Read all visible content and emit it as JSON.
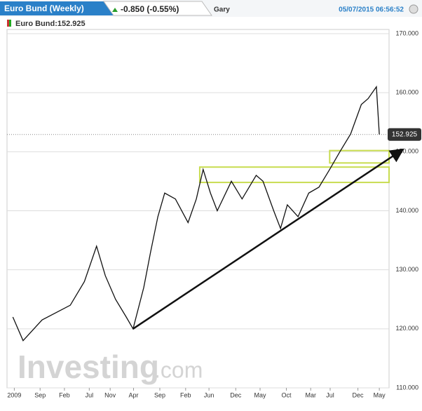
{
  "header": {
    "title": "Euro Bund (Weekly)",
    "change": "-0.850 (-0.55%)",
    "user": "Gary",
    "timestamp": "05/07/2015 06:56:52"
  },
  "chart_data": {
    "type": "line",
    "legend": "Euro Bund:152.925",
    "watermark": "Investing",
    "watermark_suffix": ".com",
    "color": "#111111",
    "grid": true,
    "x": [
      1.2,
      3.3,
      7.2,
      13,
      15.9,
      18.4,
      20.2,
      22.3,
      24.5,
      25.9,
      28.1,
      29.5,
      31,
      32.4,
      34.6,
      37.2,
      38.9,
      40.3,
      41.8,
      43.2,
      46.1,
      48.3,
      51.2,
      52.6,
      54.8,
      56.2,
      57.6,
      59.8,
      62,
      64.1,
      66.3,
      68.4,
      70.6,
      72.8,
      74.2,
      75.9,
      76.5
    ],
    "values": [
      122,
      118,
      121.5,
      124,
      128,
      134,
      129,
      125,
      122,
      120,
      127,
      133,
      139,
      143,
      142,
      138,
      142,
      147,
      143,
      140,
      145,
      142,
      146,
      145,
      140,
      137,
      141,
      139,
      143,
      144,
      147,
      150,
      153,
      158,
      159,
      161,
      152.925
    ],
    "last": 152.925,
    "trendline": {
      "x": [
        25.9,
        81
      ],
      "y": [
        120,
        150.2
      ]
    },
    "zones": [
      {
        "x": [
          39.6,
          78.5
        ],
        "y": [
          144.8,
          147.4
        ]
      },
      {
        "x": [
          66.3,
          78.5
        ],
        "y": [
          148.1,
          150.2
        ]
      }
    ],
    "xlim": [
      0,
      78.5
    ],
    "ylim": [
      110,
      170
    ],
    "xticks": [
      {
        "value": 1.5,
        "label": "2009"
      },
      {
        "value": 6.8,
        "label": "Sep"
      },
      {
        "value": 11.8,
        "label": "Feb"
      },
      {
        "value": 16.9,
        "label": "Jul"
      },
      {
        "value": 21.2,
        "label": "Nov"
      },
      {
        "value": 26,
        "label": "Apr"
      },
      {
        "value": 31.4,
        "label": "Sep"
      },
      {
        "value": 36.7,
        "label": "Feb"
      },
      {
        "value": 41.5,
        "label": "Jun"
      },
      {
        "value": 47,
        "label": "Dec"
      },
      {
        "value": 52,
        "label": "May"
      },
      {
        "value": 57.4,
        "label": "Oct"
      },
      {
        "value": 62.4,
        "label": "Mar"
      },
      {
        "value": 66.4,
        "label": "Jul"
      },
      {
        "value": 72.1,
        "label": "Dec"
      },
      {
        "value": 76.5,
        "label": "May"
      }
    ],
    "yticks": [
      {
        "value": 110,
        "label": "110.000"
      },
      {
        "value": 120,
        "label": "120.000"
      },
      {
        "value": 130,
        "label": "130.000"
      },
      {
        "value": 140,
        "label": "140.000"
      },
      {
        "value": 150,
        "label": "150.000"
      },
      {
        "value": 160,
        "label": "160.000"
      },
      {
        "value": 170,
        "label": "170.000"
      }
    ]
  }
}
